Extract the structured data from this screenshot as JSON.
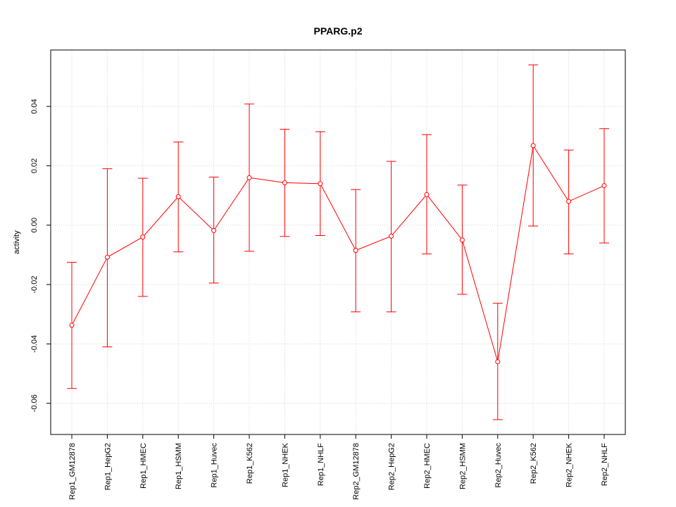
{
  "chart_data": {
    "type": "line",
    "title": "PPARG.p2",
    "xlabel": "",
    "ylabel": "activity",
    "categories": [
      "Rep1_GM12878",
      "Rep1_HepG2",
      "Rep1_HMEC",
      "Rep1_HSMM",
      "Rep1_Huvec",
      "Rep1_K562",
      "Rep1_NHEK",
      "Rep1_NHLF",
      "Rep2_GM12878",
      "Rep2_HepG2",
      "Rep2_HMEC",
      "Rep2_HSMM",
      "Rep2_Huvec",
      "Rep2_K562",
      "Rep2_NHEK",
      "Rep2_NHLF"
    ],
    "series": [
      {
        "values": [
          -0.0337,
          -0.0108,
          -0.004,
          0.0096,
          -0.0018,
          0.016,
          0.0143,
          0.014,
          -0.0085,
          -0.0037,
          0.0103,
          -0.005,
          -0.046,
          0.0268,
          0.008,
          0.0133
        ],
        "error_low": [
          -0.055,
          -0.041,
          -0.024,
          -0.009,
          -0.0195,
          -0.0088,
          -0.0038,
          -0.0035,
          -0.0292,
          -0.0292,
          -0.0097,
          -0.0233,
          -0.0655,
          -0.0003,
          -0.0097,
          -0.006
        ],
        "error_high": [
          -0.0125,
          0.019,
          0.0158,
          0.028,
          0.0162,
          0.0408,
          0.0323,
          0.0315,
          0.012,
          0.0215,
          0.0305,
          0.0135,
          -0.0263,
          0.054,
          0.0253,
          0.0325
        ]
      }
    ],
    "yticks": [
      -0.06,
      -0.04,
      -0.02,
      0.0,
      0.02,
      0.04
    ],
    "ytick_labels": [
      "-0.06",
      "-0.04",
      "-0.02",
      "0.00",
      "0.02",
      "0.04"
    ],
    "ylim": [
      -0.0705,
      0.059
    ],
    "grid": true,
    "color": "#ff0000",
    "grid_color": "#d3d3d3"
  }
}
